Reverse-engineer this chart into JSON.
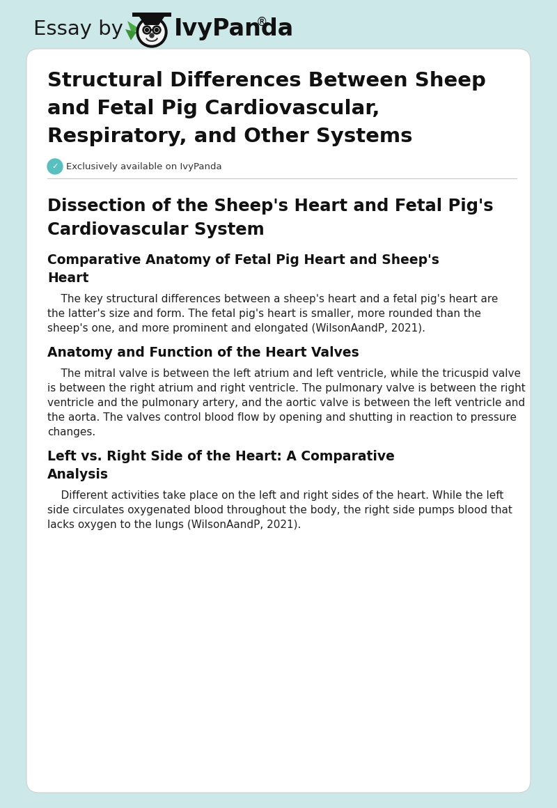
{
  "bg_color": "#cde8e8",
  "card_color": "#ffffff",
  "title_text": [
    "Structural Differences Between Sheep",
    "and Fetal Pig Cardiovascular,",
    "Respiratory, and Other Systems"
  ],
  "exclusive_text": "Exclusively available on IvyPanda",
  "badge_color": "#5abfbf",
  "text_dark": "#111111",
  "text_body": "#222222",
  "essay_by_text": "Essay by",
  "ivypanda_text": "IvyPanda",
  "sections": [
    {
      "type": "h1",
      "lines": [
        "Dissection of the Sheep's Heart and Fetal Pig's",
        "Cardiovascular System"
      ]
    },
    {
      "type": "h2",
      "lines": [
        "Comparative Anatomy of Fetal Pig Heart and Sheep's",
        "Heart"
      ]
    },
    {
      "type": "body",
      "lines": [
        "    The key structural differences between a sheep's heart and a fetal pig's heart are",
        "the latter's size and form. The fetal pig's heart is smaller, more rounded than the",
        "sheep's one, and more prominent and elongated (WilsonAandP, 2021)."
      ]
    },
    {
      "type": "h2",
      "lines": [
        "Anatomy and Function of the Heart Valves"
      ]
    },
    {
      "type": "body",
      "lines": [
        "    The mitral valve is between the left atrium and left ventricle, while the tricuspid valve",
        "is between the right atrium and right ventricle. The pulmonary valve is between the right",
        "ventricle and the pulmonary artery, and the aortic valve is between the left ventricle and",
        "the aorta. The valves control blood flow by opening and shutting in reaction to pressure",
        "changes."
      ]
    },
    {
      "type": "h2",
      "lines": [
        "Left vs. Right Side of the Heart: A Comparative",
        "Analysis"
      ]
    },
    {
      "type": "body",
      "lines": [
        "    Different activities take place on the left and right sides of the heart. While the left",
        "side circulates oxygenated blood throughout the body, the right side pumps blood that",
        "lacks oxygen to the lungs (WilsonAandP, 2021)."
      ]
    }
  ]
}
